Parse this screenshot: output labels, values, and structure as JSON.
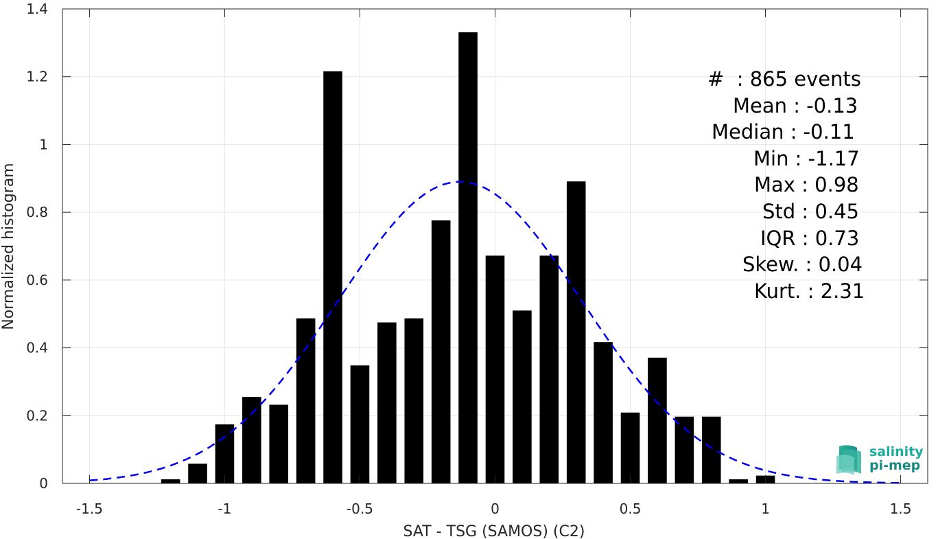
{
  "chart_data": {
    "type": "bar",
    "xlabel": "SAT - TSG (SAMOS) (C2)",
    "ylabel": "Normalized histogram",
    "xlim": [
      -1.6,
      1.6
    ],
    "ylim": [
      0,
      1.4
    ],
    "xticks": [
      -1.5,
      -1,
      -0.5,
      0,
      0.5,
      1,
      1.5
    ],
    "xtick_labels": [
      "-1.5",
      "-1",
      "-0.5",
      "0",
      "0.5",
      "1",
      "1.5"
    ],
    "yticks": [
      0,
      0.2,
      0.4,
      0.6,
      0.8,
      1,
      1.2,
      1.4
    ],
    "ytick_labels": [
      "0",
      "0.2",
      "0.4",
      "0.6",
      "0.8",
      "1",
      "1.2",
      "1.4"
    ],
    "grid": true,
    "bar_color": "#000000",
    "bars": {
      "centers": [
        -1.2,
        -1.1,
        -1.0,
        -0.9,
        -0.8,
        -0.7,
        -0.6,
        -0.5,
        -0.4,
        -0.3,
        -0.2,
        -0.1,
        0.0,
        0.1,
        0.2,
        0.3,
        0.4,
        0.5,
        0.6,
        0.7,
        0.8,
        0.9,
        1.0
      ],
      "values": [
        0.012,
        0.058,
        0.174,
        0.255,
        0.232,
        0.487,
        1.216,
        0.348,
        0.475,
        0.487,
        0.776,
        1.331,
        0.672,
        0.51,
        0.672,
        0.891,
        0.417,
        0.209,
        0.371,
        0.197,
        0.197,
        0.012,
        0.023
      ],
      "width": 0.07
    },
    "fit_curve": {
      "style": "dashed",
      "color": "#0000ee",
      "mean": -0.13,
      "std": 0.45,
      "x_range": [
        -1.5,
        1.5
      ]
    }
  },
  "stats": {
    "events": "#  : 865 events",
    "mean": "Mean : -0.13",
    "median": "Median : -0.11",
    "min": "Min : -1.17",
    "max": "Max : 0.98",
    "std": "Std : 0.45",
    "iqr": "IQR : 0.73",
    "skew": "Skew. : 0.04",
    "kurt": "Kurt. : 2.31"
  },
  "logo": {
    "line1": "salinity",
    "line2": "pi-mep",
    "icon": "salinity-pimep-logo-icon"
  }
}
